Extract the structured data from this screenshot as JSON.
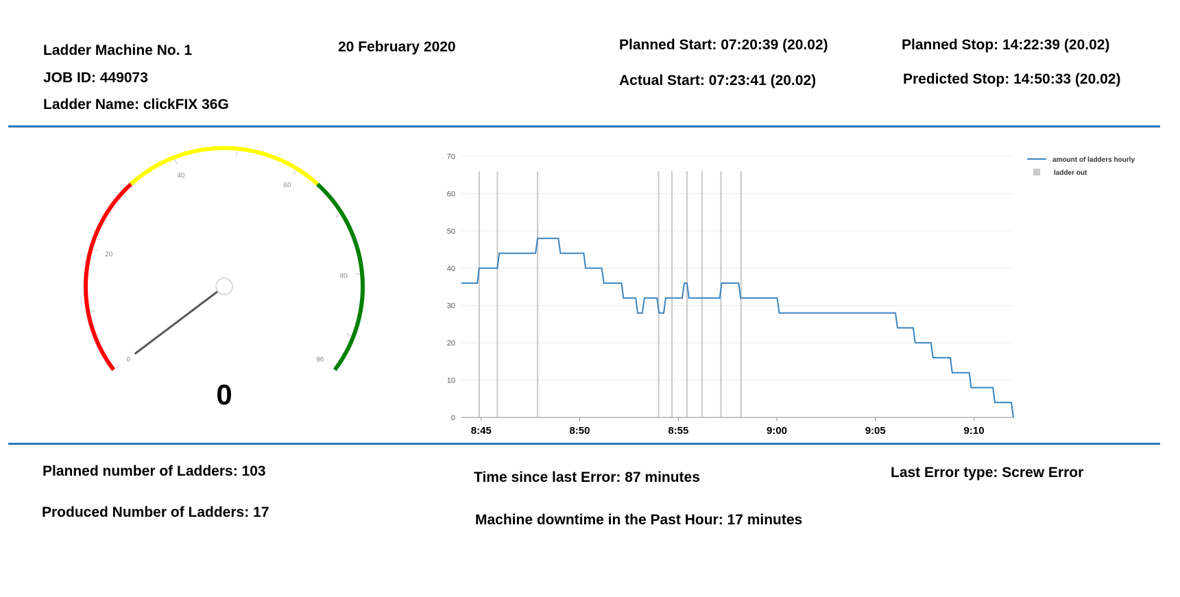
{
  "header": {
    "machine": "Ladder Machine No. 1",
    "job_id": "JOB ID: 449073",
    "ladder_name": "Ladder Name: clickFIX 36G",
    "date": "20 February 2020",
    "planned_start": "Planned Start: 07:20:39  (20.02)",
    "actual_start": "Actual Start: 07:23:41  (20.02)",
    "planned_stop": "Planned Stop: 14:22:39 (20.02)",
    "predicted_stop": "Predicted Stop: 14:50:33 (20.02)"
  },
  "gauge": {
    "value": 0,
    "value_label": "0",
    "min": 0,
    "max": 96,
    "ticks": [
      0,
      20,
      40,
      60,
      80,
      96
    ],
    "bands": [
      {
        "from": 0,
        "to": 32,
        "color": "#ff0000"
      },
      {
        "from": 32,
        "to": 64,
        "color": "#ffff00"
      },
      {
        "from": 64,
        "to": 96,
        "color": "#008000"
      }
    ],
    "needle_color": "#595959"
  },
  "chart_data": {
    "type": "line",
    "ylim": [
      0,
      70
    ],
    "yticks": [
      0,
      10,
      20,
      30,
      40,
      50,
      60,
      70
    ],
    "xlim": [
      8.7333,
      9.2
    ],
    "xticks": [
      {
        "v": 8.75,
        "label": "8:45"
      },
      {
        "v": 8.8333,
        "label": "8:50"
      },
      {
        "v": 8.9167,
        "label": "8:55"
      },
      {
        "v": 9.0,
        "label": "9:00"
      },
      {
        "v": 9.0833,
        "label": "9:05"
      },
      {
        "v": 9.1667,
        "label": "9:10"
      }
    ],
    "series": [
      {
        "name": "amount of ladders hourly",
        "color": "#3a84c0",
        "x": [
          8.7333,
          8.7467,
          8.7483,
          8.7637,
          8.7653,
          8.796,
          8.7977,
          8.8153,
          8.817,
          8.8367,
          8.8383,
          8.852,
          8.8537,
          8.8687,
          8.8703,
          8.8807,
          8.8823,
          8.8863,
          8.888,
          8.8987,
          8.9003,
          8.9043,
          8.906,
          8.92,
          8.9217,
          8.924,
          8.9257,
          8.9517,
          8.9533,
          8.9677,
          8.9693,
          9.0003,
          9.002,
          9.1003,
          9.102,
          9.1153,
          9.117,
          9.1303,
          9.132,
          9.1467,
          9.1483,
          9.1627,
          9.1643,
          9.1827,
          9.1843,
          9.1983,
          9.2
        ],
        "y": [
          36,
          36,
          40,
          40,
          44,
          44,
          48,
          48,
          44,
          44,
          40,
          40,
          36,
          36,
          32,
          32,
          28,
          28,
          32,
          32,
          28,
          28,
          32,
          32,
          36,
          36,
          32,
          32,
          36,
          36,
          32,
          32,
          28,
          28,
          24,
          24,
          20,
          20,
          16,
          16,
          12,
          12,
          8,
          8,
          4,
          4,
          0
        ]
      }
    ],
    "event_series": {
      "name": "ladder out",
      "color": "#c8c8c8",
      "x": [
        8.7483,
        8.7637,
        8.7977,
        8.9,
        8.9113,
        8.924,
        8.9367,
        8.9527,
        8.9697
      ]
    },
    "legend": "top-right"
  },
  "footer": {
    "planned_number": "Planned number of Ladders: 103",
    "produced_number": "Produced Number of Ladders: 17",
    "time_since_error": "Time since last Error: 87 minutes",
    "downtime": "Machine  downtime in the Past Hour: 17 minutes",
    "last_error_type": "Last Error type: Screw Error"
  }
}
